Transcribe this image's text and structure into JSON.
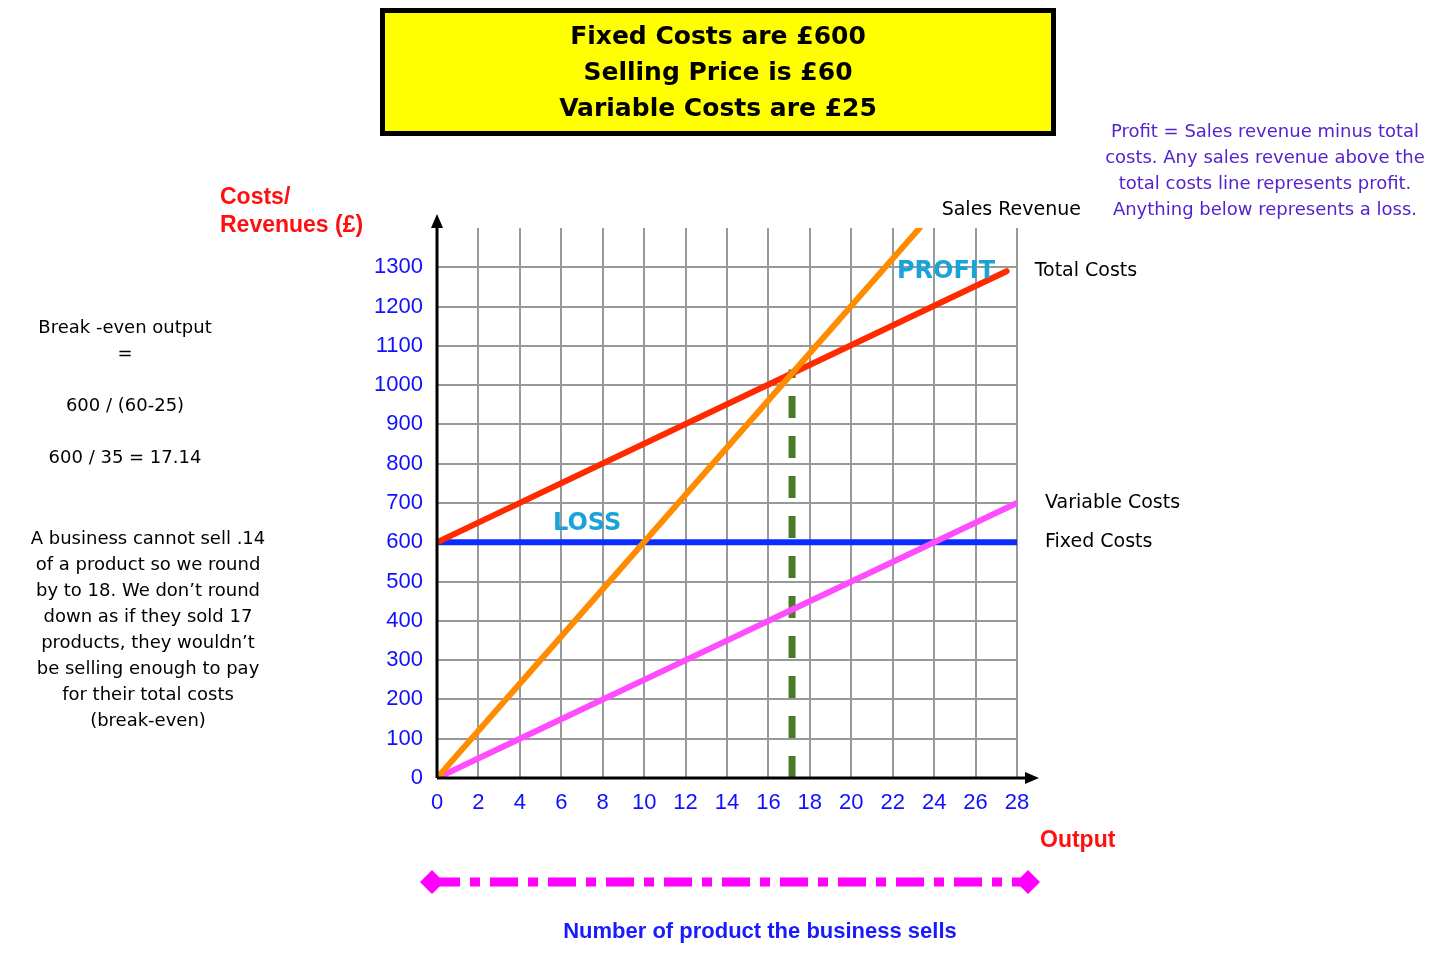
{
  "chart_data": {
    "type": "line",
    "title": "Fixed Costs are £600\nSelling Price is £60\nVariable Costs are £25",
    "xlabel": "Output",
    "ylabel": "Costs/\nRevenues (£)",
    "xlim": [
      0,
      28
    ],
    "xticks": [
      0,
      2,
      4,
      6,
      8,
      10,
      12,
      14,
      16,
      18,
      20,
      22,
      24,
      26,
      28
    ],
    "ylim": [
      0,
      1400
    ],
    "yticks": [
      0,
      100,
      200,
      300,
      400,
      500,
      600,
      700,
      800,
      900,
      1000,
      1100,
      1200,
      1300
    ],
    "grid": true,
    "legend": false,
    "marker": "none",
    "line_style": "solid",
    "series": [
      {
        "name": "Sales Revenue",
        "color": "#ff8c00",
        "x": [
          0,
          23.3
        ],
        "values": [
          0,
          1400
        ]
      },
      {
        "name": "Total Costs",
        "color": "#ff2a00",
        "x": [
          0,
          27.5
        ],
        "values": [
          600,
          1290
        ]
      },
      {
        "name": "Variable Costs",
        "color": "#ff4cff",
        "x": [
          0,
          28
        ],
        "values": [
          0,
          700
        ]
      },
      {
        "name": "Fixed Costs",
        "color": "#0a2cff",
        "x": [
          0,
          28
        ],
        "values": [
          600,
          600
        ]
      },
      {
        "color": "#4a7a2a",
        "x": [
          17.14,
          17.14
        ],
        "values": [
          0,
          1040
        ],
        "line_style": "dashed"
      }
    ],
    "annotations": [
      "PROFIT",
      "LOSS",
      "Profit = Sales revenue minus total costs. Any sales revenue above the total costs line represents profit. Anything below represents a loss.",
      "Break -even output\n=\n\n600 / (60-25)\n\n600 / 35 = 17.14",
      "A business cannot sell .14 of a product so we round by to 18. We don’t round down as if they sold 17 products, they wouldn’t be selling enough to pay for their total costs (break-even)",
      "Number of product the business sells"
    ]
  }
}
